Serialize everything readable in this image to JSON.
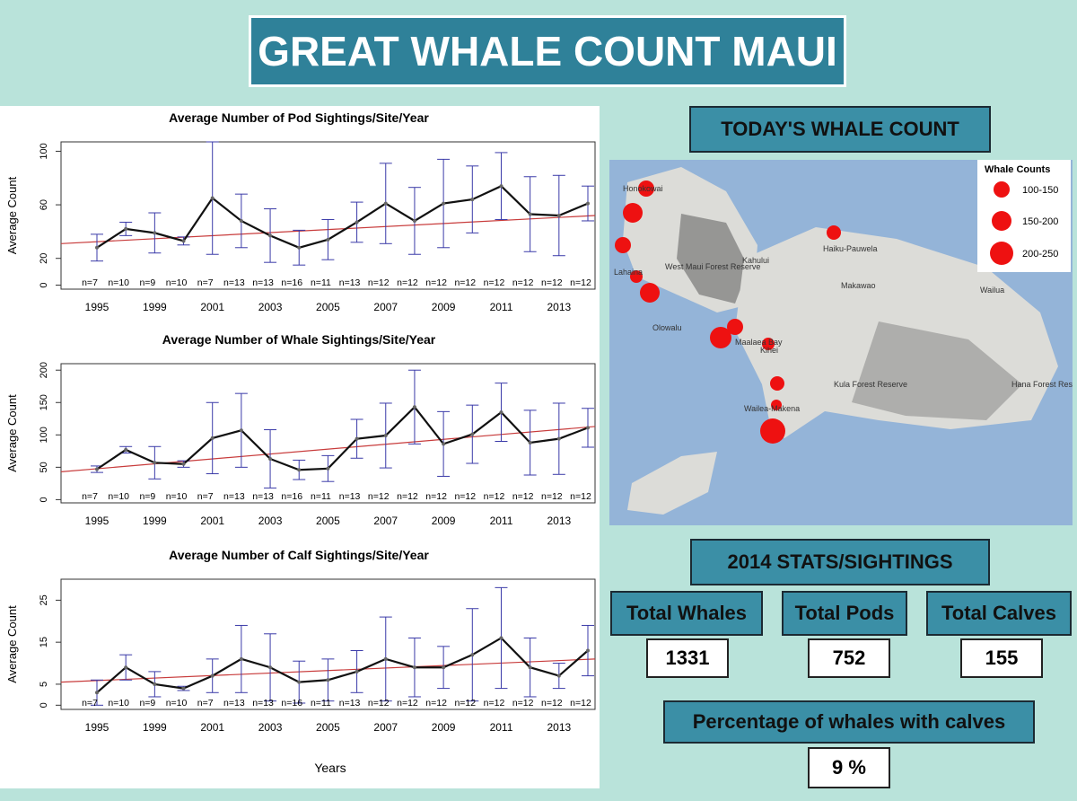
{
  "header": {
    "title": "GREAT WHALE COUNT MAUI"
  },
  "chart_data": [
    {
      "type": "line",
      "title": "Average Number of Pod Sightings/Site/Year",
      "ylabel": "Average Count",
      "categories": [
        1995,
        null,
        1999,
        null,
        2001,
        null,
        2003,
        null,
        2005,
        null,
        2007,
        null,
        2009,
        null,
        2011,
        null,
        2013,
        null
      ],
      "values": [
        28,
        42,
        39,
        33,
        65,
        48,
        37,
        28,
        34,
        47,
        61,
        48,
        61,
        64,
        74,
        53,
        52,
        61
      ],
      "errors": [
        10,
        5,
        15,
        3,
        42,
        20,
        20,
        13,
        15,
        15,
        30,
        25,
        33,
        25,
        25,
        28,
        30,
        13
      ],
      "n_labels": [
        "n=7",
        "n=10",
        "n=9",
        "n=10",
        "n=7",
        "n=13",
        "n=13",
        "n=16",
        "n=11",
        "n=13",
        "n=12",
        "n=12",
        "n=12",
        "n=12",
        "n=12",
        "n=12",
        "n=12",
        "n=12"
      ],
      "trend": [
        31,
        52
      ],
      "ylim": [
        -3,
        107
      ],
      "yticks": [
        0,
        20,
        60,
        100
      ],
      "color": "#111111",
      "error_color": "#3a3aa8",
      "trend_color": "#c83c3c"
    },
    {
      "type": "line",
      "title": "Average Number of Whale Sightings/Site/Year",
      "ylabel": "Average Count",
      "categories": [
        1995,
        null,
        1999,
        null,
        2001,
        null,
        2003,
        null,
        2005,
        null,
        2007,
        null,
        2009,
        null,
        2011,
        null,
        2013,
        null
      ],
      "values": [
        47,
        77,
        57,
        55,
        95,
        107,
        63,
        46,
        48,
        94,
        99,
        143,
        86,
        101,
        135,
        88,
        94,
        111
      ],
      "errors": [
        5,
        5,
        25,
        5,
        55,
        57,
        45,
        15,
        20,
        30,
        50,
        57,
        50,
        45,
        45,
        50,
        55,
        30
      ],
      "n_labels": [
        "n=7",
        "n=10",
        "n=9",
        "n=10",
        "n=7",
        "n=13",
        "n=13",
        "n=16",
        "n=11",
        "n=13",
        "n=12",
        "n=12",
        "n=12",
        "n=12",
        "n=12",
        "n=12",
        "n=12",
        "n=12"
      ],
      "trend": [
        43,
        113
      ],
      "ylim": [
        -5,
        210
      ],
      "yticks": [
        0,
        50,
        100,
        150,
        200
      ],
      "color": "#111111",
      "error_color": "#3a3aa8",
      "trend_color": "#c83c3c"
    },
    {
      "type": "line",
      "title": "Average Number of Calf Sightings/Site/Year",
      "ylabel": "Average Count",
      "xlabel": "Years",
      "categories": [
        1995,
        null,
        1999,
        null,
        2001,
        null,
        2003,
        null,
        2005,
        null,
        2007,
        null,
        2009,
        null,
        2011,
        null,
        2013,
        null
      ],
      "values": [
        3,
        9,
        5,
        4,
        7,
        11,
        9,
        5.5,
        6,
        8,
        11,
        9,
        9,
        12,
        16,
        9,
        7,
        13
      ],
      "errors": [
        3,
        3,
        3,
        0.5,
        4,
        8,
        8,
        5,
        5,
        5,
        10,
        7,
        5,
        11,
        12,
        7,
        3,
        6
      ],
      "n_labels": [
        "n=7",
        "n=10",
        "n=9",
        "n=10",
        "n=7",
        "n=13",
        "n=13",
        "n=16",
        "n=11",
        "n=13",
        "n=12",
        "n=12",
        "n=12",
        "n=12",
        "n=12",
        "n=12",
        "n=12",
        "n=12"
      ],
      "trend": [
        5.5,
        11
      ],
      "ylim": [
        -1,
        30
      ],
      "yticks": [
        0,
        5,
        15,
        25
      ],
      "color": "#111111",
      "error_color": "#3a3aa8",
      "trend_color": "#c83c3c"
    }
  ],
  "map": {
    "title": "TODAY'S WHALE COUNT",
    "legend_title": "Whale Counts",
    "legend": [
      "100-150",
      "150-200",
      "200-250"
    ],
    "places": [
      "Kahului",
      "Haiku-Pauwela",
      "Makawao",
      "Wailua",
      "Lahaina",
      "Olowalu",
      "Maalaea Bay",
      "Kihei",
      "Kula Forest Reserve",
      "Hana Forest Reserve",
      "Wailea-Makena",
      "West Maui Forest Reserve",
      "Honokowai"
    ]
  },
  "stats": {
    "title": "2014 STATS/SIGHTINGS",
    "items": [
      {
        "label": "Total Whales",
        "value": 1331
      },
      {
        "label": "Total Pods",
        "value": 752
      },
      {
        "label": "Total Calves",
        "value": 155
      }
    ],
    "percentage_label": "Percentage of whales with calves",
    "percentage": "9 %"
  }
}
